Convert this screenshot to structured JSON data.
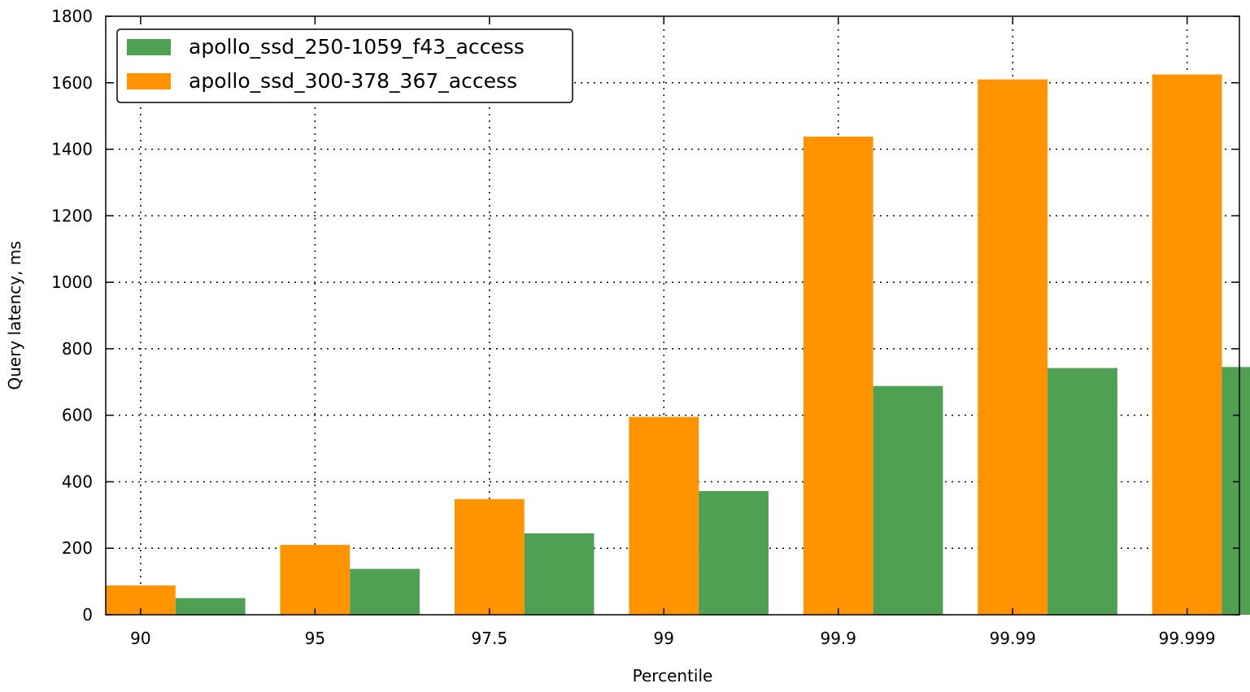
{
  "chart_data": {
    "type": "bar",
    "title": "",
    "xlabel": "Percentile",
    "ylabel": "Query latency, ms",
    "categories": [
      "90",
      "95",
      "97.5",
      "99",
      "99.9",
      "99.99",
      "99.999"
    ],
    "series": [
      {
        "name": "apollo_ssd_300-378_367_access",
        "color": "#ff9400",
        "values": [
          88,
          210,
          348,
          595,
          1438,
          1610,
          1625
        ]
      },
      {
        "name": "apollo_ssd_250-1059_f43_access",
        "color": "#4fa052",
        "values": [
          50,
          138,
          245,
          372,
          688,
          742,
          745
        ]
      }
    ],
    "legend_order": [
      1,
      0
    ],
    "ylim": [
      0,
      1800
    ],
    "yticks": [
      0,
      200,
      400,
      600,
      800,
      1000,
      1200,
      1400,
      1600,
      1800
    ],
    "grid": true,
    "legend_position": "top-left"
  }
}
